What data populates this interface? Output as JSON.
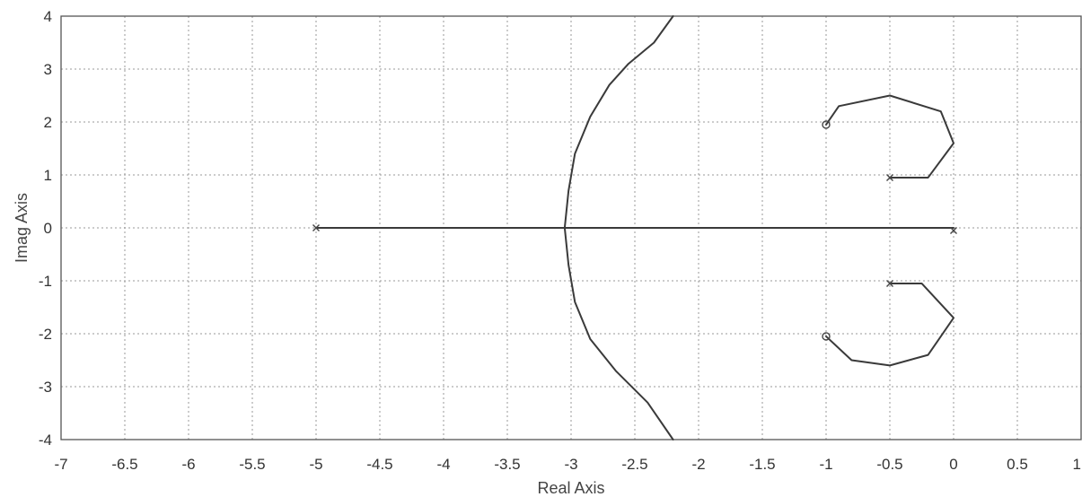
{
  "chart_data": {
    "type": "line",
    "xlabel": "Real Axis",
    "ylabel": "Imag Axis",
    "xlim": [
      -7,
      1
    ],
    "ylim": [
      -4,
      4
    ],
    "grid": true,
    "x_ticks": [
      -7,
      -6.5,
      -6,
      -5.5,
      -5,
      -4.5,
      -4,
      -3.5,
      -3,
      -2.5,
      -2,
      -1.5,
      -1,
      -0.5,
      0,
      0.5,
      1
    ],
    "y_ticks": [
      -4,
      -3,
      -2,
      -1,
      0,
      1,
      2,
      3,
      4
    ],
    "series": [
      {
        "points": [
          [
            -5,
            0
          ],
          [
            0,
            0
          ]
        ]
      },
      {
        "points": [
          [
            -2.2,
            4
          ],
          [
            -2.35,
            3.5
          ],
          [
            -2.55,
            3.1
          ],
          [
            -2.7,
            2.7
          ],
          [
            -2.85,
            2.1
          ],
          [
            -2.97,
            1.4
          ],
          [
            -3.02,
            0.7
          ],
          [
            -3.05,
            0
          ],
          [
            -3.02,
            -0.7
          ],
          [
            -2.97,
            -1.4
          ],
          [
            -2.85,
            -2.1
          ],
          [
            -2.65,
            -2.7
          ],
          [
            -2.4,
            -3.3
          ],
          [
            -2.2,
            -4
          ]
        ]
      },
      {
        "points": [
          [
            -0.5,
            0.95
          ],
          [
            -0.2,
            0.95
          ],
          [
            0,
            1.6
          ],
          [
            -0.1,
            2.2
          ],
          [
            -0.5,
            2.5
          ],
          [
            -0.9,
            2.3
          ],
          [
            -1.0,
            1.95
          ]
        ]
      },
      {
        "points": [
          [
            -0.5,
            -1.05
          ],
          [
            -0.25,
            -1.05
          ],
          [
            0,
            -1.7
          ],
          [
            -0.2,
            -2.4
          ],
          [
            -0.5,
            -2.6
          ],
          [
            -0.8,
            -2.5
          ],
          [
            -1.0,
            -2.05
          ]
        ]
      }
    ],
    "poles": [
      [
        -5,
        0
      ],
      [
        0,
        -0.05
      ],
      [
        -0.5,
        0.95
      ],
      [
        -0.5,
        -1.05
      ]
    ],
    "zeros": [
      [
        -1.0,
        1.95
      ],
      [
        -1.0,
        -2.05
      ]
    ]
  }
}
